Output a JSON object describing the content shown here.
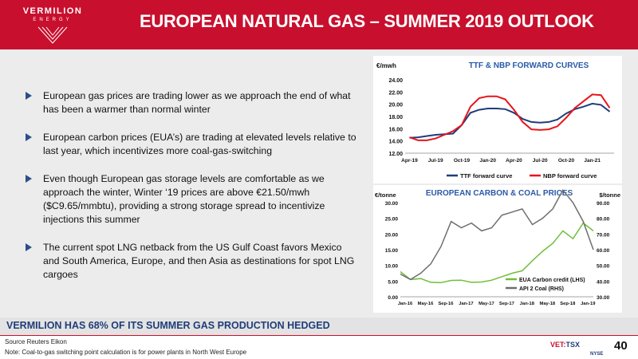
{
  "brand": {
    "name": "VERMILION",
    "sub": "ENERGY"
  },
  "title": "EUROPEAN NATURAL GAS – SUMMER 2019 OUTLOOK",
  "bullets": [
    "European gas prices are trading lower as we approach the end of what has been a warmer than normal winter",
    "European carbon prices (EUA’s) are trading at elevated levels relative to last year, which incentivizes more coal-gas-switching",
    "Even though European gas storage levels are comfortable as we approach the winter,  Winter ‘19 prices are above €21.50/mwh ($C9.65/mmbtu), providing a strong storage spread to incentivize injections this summer",
    "The current spot LNG netback from the US Gulf Coast favors Mexico and South America, Europe, and then Asia as destinations for spot LNG cargoes"
  ],
  "chart_data": [
    {
      "type": "line",
      "title": "TTF & NBP FORWARD CURVES",
      "ylabel": "€/mwh",
      "ylim": [
        12,
        24
      ],
      "yticks": [
        "24.00",
        "22.00",
        "20.00",
        "18.00",
        "16.00",
        "14.00",
        "12.00"
      ],
      "categories": [
        "Apr-19",
        "May-19",
        "Jun-19",
        "Jul-19",
        "Aug-19",
        "Sep-19",
        "Oct-19",
        "Nov-19",
        "Dec-19",
        "Jan-20",
        "Feb-20",
        "Mar-20",
        "Apr-20",
        "May-20",
        "Jun-20",
        "Jul-20",
        "Aug-20",
        "Sep-20",
        "Oct-20",
        "Nov-20",
        "Dec-20",
        "Jan-21",
        "Feb-21",
        "Mar-21"
      ],
      "xtick_labels": [
        "Apr-19",
        "Jul-19",
        "Oct-19",
        "Jan-20",
        "Apr-20",
        "Jul-20",
        "Oct-20",
        "Jan-21"
      ],
      "legend": "bottom",
      "series": [
        {
          "name": "TTF forward curve",
          "color": "#1f3d7a",
          "values": [
            14.5,
            14.6,
            14.8,
            15.0,
            15.1,
            15.2,
            16.6,
            18.6,
            19.1,
            19.3,
            19.3,
            19.2,
            18.6,
            17.6,
            17.1,
            17.0,
            17.1,
            17.5,
            18.5,
            19.2,
            19.6,
            20.1,
            19.9,
            18.8
          ]
        },
        {
          "name": "NBP forward curve",
          "color": "#e8141c",
          "values": [
            14.6,
            14.1,
            14.1,
            14.4,
            15.0,
            15.6,
            16.6,
            19.6,
            21.0,
            21.3,
            21.3,
            20.8,
            19.1,
            17.1,
            15.9,
            15.8,
            15.9,
            16.4,
            17.8,
            19.4,
            20.5,
            21.6,
            21.5,
            19.4
          ]
        }
      ]
    },
    {
      "type": "line",
      "title": "EUROPEAN CARBON & COAL PRICES",
      "ylabel": "€/tonne",
      "ylabel_right": "$/tonne",
      "ylim": [
        0,
        30
      ],
      "ylim_right": [
        30,
        90
      ],
      "yticks": [
        "30.00",
        "25.00",
        "20.00",
        "15.00",
        "10.00",
        "5.00",
        "0.00"
      ],
      "yticks_right": [
        "90.00",
        "80.00",
        "70.00",
        "60.00",
        "50.00",
        "40.00",
        "30.00"
      ],
      "x": [
        "Jan-16",
        "Mar-16",
        "May-16",
        "Jul-16",
        "Sep-16",
        "Nov-16",
        "Jan-17",
        "Mar-17",
        "May-17",
        "Jul-17",
        "Sep-17",
        "Nov-17",
        "Jan-18",
        "Mar-18",
        "May-18",
        "Jul-18",
        "Sep-18",
        "Nov-18",
        "Jan-19",
        "Mar-19"
      ],
      "xtick_labels": [
        "Jan-16",
        "May-16",
        "Sep-16",
        "Jan-17",
        "May-17",
        "Sep-17",
        "Jan-18",
        "May-18",
        "Sep-18",
        "Jan-19"
      ],
      "legend": "bottom-right",
      "series": [
        {
          "name": "EUA Carbon credit (LHS)",
          "color": "#6fbf3a",
          "axis": "left",
          "values": [
            8.0,
            5.5,
            5.8,
            4.6,
            4.5,
            5.2,
            5.3,
            4.6,
            4.7,
            5.3,
            6.4,
            7.5,
            8.3,
            11.5,
            14.5,
            17.0,
            21.0,
            18.5,
            23.5,
            21.0
          ]
        },
        {
          "name": "API 2 Coal (RHS)",
          "color": "#6e6e6e",
          "axis": "right",
          "values": [
            44.5,
            41.0,
            45.0,
            51.0,
            62.0,
            78.0,
            74.0,
            77.0,
            72.0,
            74.0,
            82.0,
            84.0,
            86.0,
            76.0,
            80.0,
            86.0,
            98.0,
            90.0,
            78.0,
            60.0
          ]
        }
      ]
    }
  ],
  "hedged_banner": "VERMILION HAS 68% OF ITS SUMMER GAS PRODUCTION HEDGED",
  "footer": {
    "source": "Source Reuters Eikon",
    "note": "Note: Coal-to-gas switching point calculation is for power plants in North West Europe",
    "ticker_vet": "VET:",
    "ticker_tsx": "TSX",
    "ticker_nyse": "NYSE",
    "page_number": "40"
  },
  "colors": {
    "brand_red": "#c8102e",
    "navy": "#1f3d7a",
    "chart_title_blue": "#2a5aa8"
  }
}
